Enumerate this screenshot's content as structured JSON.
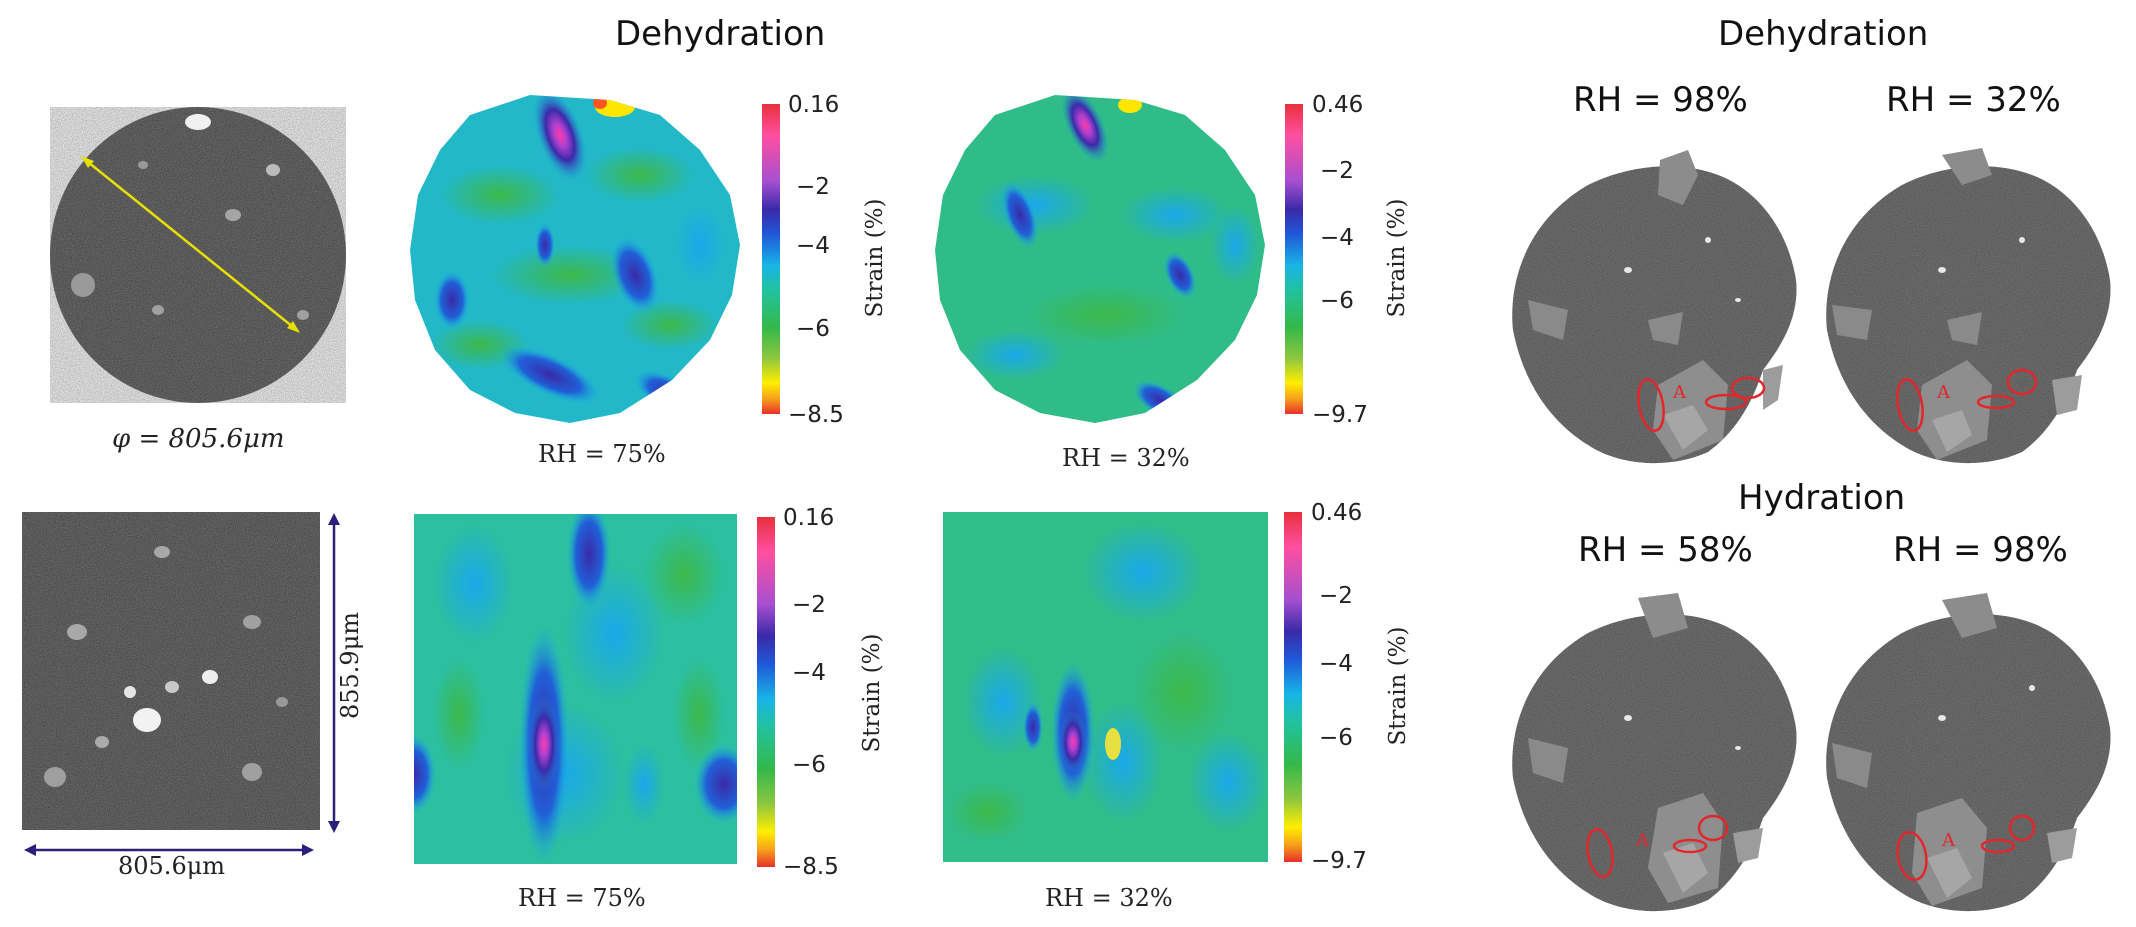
{
  "headings": {
    "dehydration_left": "Dehydration",
    "dehydration_right": "Dehydration",
    "hydration_right": "Hydration"
  },
  "specimen": {
    "diameter_label": "φ = 805.6μm",
    "width_label": "805.6μm",
    "height_label": "855.9μm"
  },
  "strain_maps": {
    "top_left": {
      "caption": "RH = 75%",
      "cbar_label": "Strain (%)",
      "ticks": [
        "0.16",
        "−2",
        "−4",
        "−6",
        "−8.5"
      ]
    },
    "top_right": {
      "caption": "RH = 32%",
      "cbar_label": "Strain (%)",
      "ticks": [
        "0.46",
        "−2",
        "−4",
        "−6",
        "−9.7"
      ]
    },
    "bottom_left": {
      "caption": "RH = 75%",
      "cbar_label": "Strain (%)",
      "ticks": [
        "0.16",
        "−2",
        "−4",
        "−6",
        "−8.5"
      ]
    },
    "bottom_right": {
      "caption": "RH = 32%",
      "cbar_label": "Strain (%)",
      "ticks": [
        "0.46",
        "−2",
        "−4",
        "−6",
        "−9.7"
      ]
    }
  },
  "ct_scans": {
    "top_left_label": "RH = 98%",
    "top_right_label": "RH = 32%",
    "bottom_left_label": "RH = 58%",
    "bottom_right_label": "RH = 98%",
    "region_marker": "A"
  }
}
